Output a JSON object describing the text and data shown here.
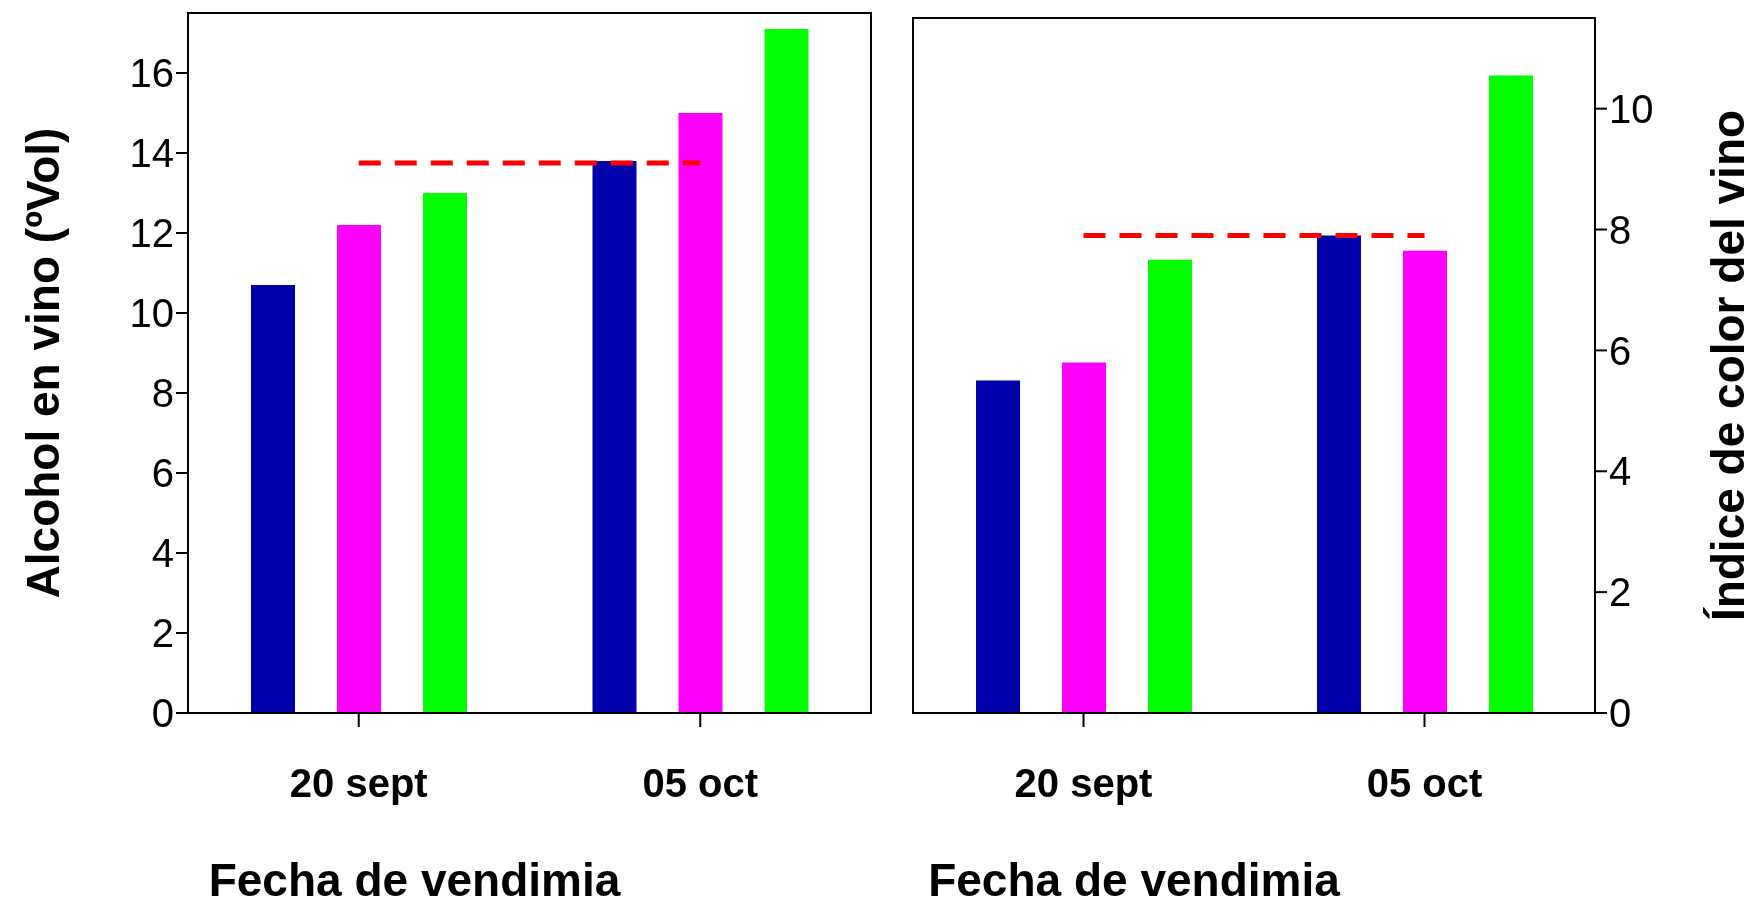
{
  "chart_data": [
    {
      "type": "bar",
      "categories": [
        "20 sept",
        "05 oct"
      ],
      "xlabel": "Fecha de vendimia",
      "ylabel": "Alcohol en vino (ºVol)",
      "ylim": [
        0,
        17.5
      ],
      "yticks": [
        0,
        2,
        4,
        6,
        8,
        10,
        12,
        14,
        16
      ],
      "legend": false,
      "grid": false,
      "series": [
        {
          "color": "#0000aa",
          "values": [
            10.7,
            13.8
          ]
        },
        {
          "color": "#ff00ff",
          "values": [
            12.2,
            15.0
          ]
        },
        {
          "color": "#00ff00",
          "values": [
            13.0,
            17.1
          ]
        }
      ],
      "ref_lines": [
        {
          "axis": "y",
          "value": 13.75,
          "color": "#ff0000",
          "line_style": "dashed"
        }
      ]
    },
    {
      "type": "bar",
      "categories": [
        "20 sept",
        "05 oct"
      ],
      "xlabel": "Fecha de vendimia",
      "y2label": "Índice de color del vino",
      "y2lim": [
        0,
        11.5
      ],
      "y2ticks": [
        0,
        2,
        4,
        6,
        8,
        10
      ],
      "legend": false,
      "grid": false,
      "series": [
        {
          "color": "#0000aa",
          "axis": "y2",
          "values": [
            5.5,
            7.9
          ]
        },
        {
          "color": "#ff00ff",
          "axis": "y2",
          "values": [
            5.8,
            7.65
          ]
        },
        {
          "color": "#00ff00",
          "axis": "y2",
          "values": [
            7.5,
            10.55
          ]
        }
      ],
      "ref_lines": [
        {
          "axis": "y2",
          "value": 7.9,
          "color": "#ff0000",
          "line_style": "dashed"
        }
      ]
    }
  ]
}
